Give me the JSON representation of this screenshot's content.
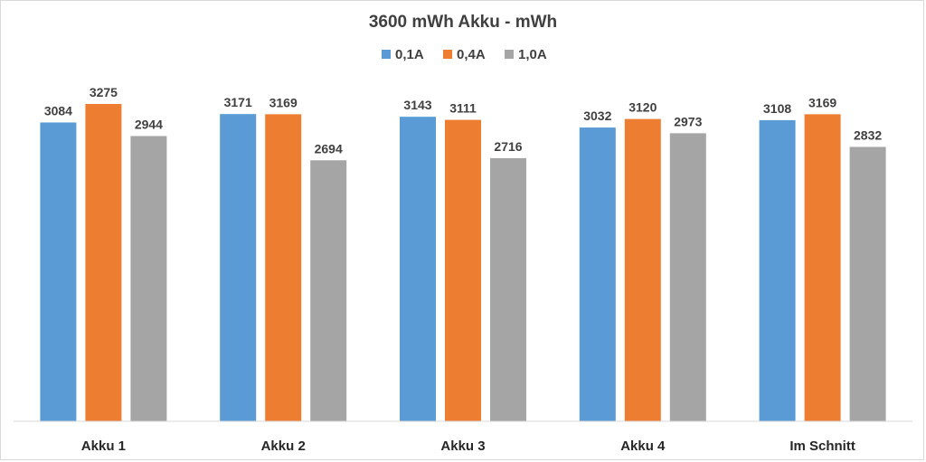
{
  "chart_data": {
    "type": "bar",
    "title": "3600 mWh Akku - mWh",
    "categories": [
      "Akku 1",
      "Akku 2",
      "Akku 3",
      "Akku 4",
      "Im Schnitt"
    ],
    "series": [
      {
        "name": "0,1A",
        "color": "#5b9bd5",
        "values": [
          3084,
          3171,
          3143,
          3032,
          3108
        ]
      },
      {
        "name": "0,4A",
        "color": "#ed7d31",
        "values": [
          3275,
          3169,
          3111,
          3120,
          3169
        ]
      },
      {
        "name": "1,0A",
        "color": "#a5a5a5",
        "values": [
          2944,
          2694,
          2716,
          2973,
          2832
        ]
      }
    ],
    "ylim": [
      0,
      3275
    ],
    "legend_position": "top",
    "grid": false,
    "axis_color": "#d9d9d9",
    "text_color": "#404040"
  }
}
